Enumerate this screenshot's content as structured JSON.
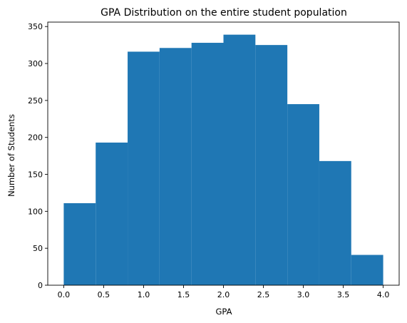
{
  "chart_data": {
    "type": "bar",
    "title": "GPA Distribution on the entire student population",
    "xlabel": "GPA",
    "ylabel": "Number of Students",
    "bins": [
      {
        "x0": 0.0,
        "x1": 0.4,
        "count": 111
      },
      {
        "x0": 0.4,
        "x1": 0.8,
        "count": 193
      },
      {
        "x0": 0.8,
        "x1": 1.2,
        "count": 316
      },
      {
        "x0": 1.2,
        "x1": 1.6,
        "count": 321
      },
      {
        "x0": 1.6,
        "x1": 2.0,
        "count": 328
      },
      {
        "x0": 2.0,
        "x1": 2.4,
        "count": 339
      },
      {
        "x0": 2.4,
        "x1": 2.8,
        "count": 325
      },
      {
        "x0": 2.8,
        "x1": 3.2,
        "count": 245
      },
      {
        "x0": 3.2,
        "x1": 3.6,
        "count": 168
      },
      {
        "x0": 3.6,
        "x1": 4.0,
        "count": 41
      }
    ],
    "xlim": [
      -0.2,
      4.2
    ],
    "ylim": [
      0,
      356
    ],
    "xticks": [
      "0.0",
      "0.5",
      "1.0",
      "1.5",
      "2.0",
      "2.5",
      "3.0",
      "3.5",
      "4.0"
    ],
    "yticks": [
      "0",
      "50",
      "100",
      "150",
      "200",
      "250",
      "300",
      "350"
    ],
    "bar_color": "#1f77b4",
    "grid": false,
    "legend": false
  }
}
